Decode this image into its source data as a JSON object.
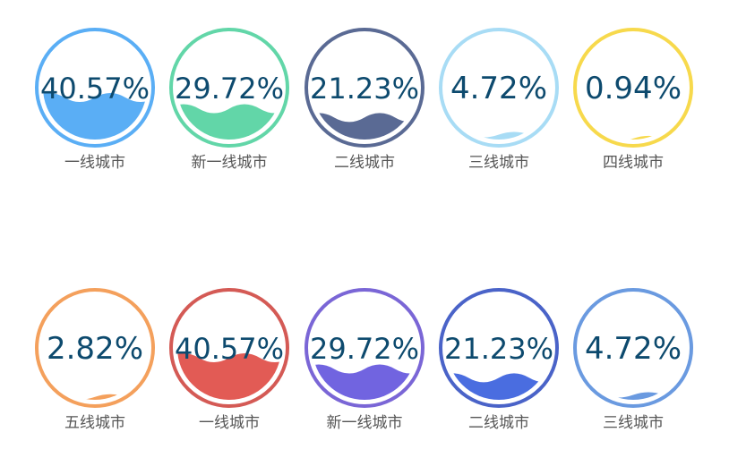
{
  "chart_data": {
    "type": "liquidfill",
    "items": [
      {
        "label": "一线城市",
        "value": 40.57,
        "display": "40.57%",
        "color": "#5aaef5",
        "border": "#5aaef5"
      },
      {
        "label": "新一线城市",
        "value": 29.72,
        "display": "29.72%",
        "color": "#62d6a8",
        "border": "#62d6a8"
      },
      {
        "label": "二线城市",
        "value": 21.23,
        "display": "21.23%",
        "color": "#5a6a94",
        "border": "#5a6a94"
      },
      {
        "label": "三线城市",
        "value": 4.72,
        "display": "4.72%",
        "color": "#a8dcf5",
        "border": "#a8dcf5"
      },
      {
        "label": "四线城市",
        "value": 0.94,
        "display": "0.94%",
        "color": "#f7d94c",
        "border": "#f7d94c"
      },
      {
        "label": "五线城市",
        "value": 2.82,
        "display": "2.82%",
        "color": "#f4a05c",
        "border": "#f4a05c"
      },
      {
        "label": "一线城市",
        "value": 40.57,
        "display": "40.57%",
        "color": "#e25b55",
        "border": "#d45a55"
      },
      {
        "label": "新一线城市",
        "value": 29.72,
        "display": "29.72%",
        "color": "#7164e0",
        "border": "#7a66d6"
      },
      {
        "label": "二线城市",
        "value": 21.23,
        "display": "21.23%",
        "color": "#4a6de0",
        "border": "#4a63c8"
      },
      {
        "label": "三线城市",
        "value": 4.72,
        "display": "4.72%",
        "color": "#6a9ae0",
        "border": "#6a9ae0"
      }
    ]
  },
  "text_color": "#0d4a6e",
  "label_color": "#555555"
}
